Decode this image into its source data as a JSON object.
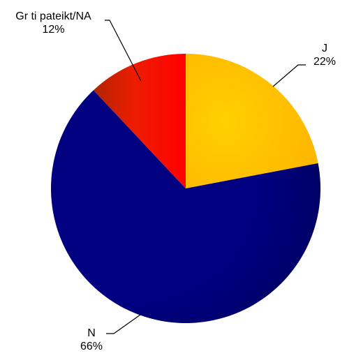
{
  "chart_data": {
    "type": "pie",
    "slices": [
      {
        "name": "J",
        "value": 22,
        "percent_label": "22%",
        "color": "#ffc400"
      },
      {
        "name": "N",
        "value": 66,
        "percent_label": "66%",
        "color": "#000080"
      },
      {
        "name": "Gr  ti pateikt/NA",
        "value": 12,
        "percent_label": "12%",
        "color": "#ff1a00"
      }
    ],
    "start_angle": "12 o'clock",
    "direction": "clockwise"
  }
}
